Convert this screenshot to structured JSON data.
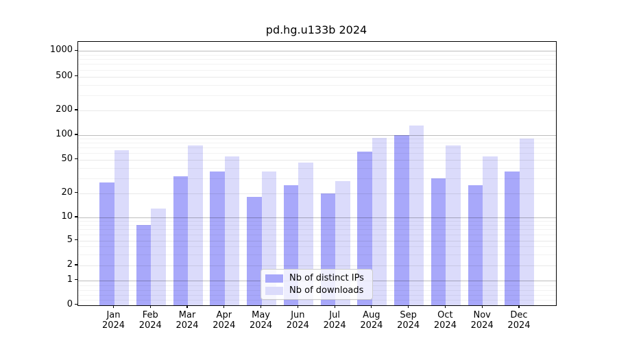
{
  "chart_data": {
    "type": "bar",
    "title": "pd.hg.u133b 2024",
    "categories": [
      "Jan 2024",
      "Feb 2024",
      "Mar 2024",
      "Apr 2024",
      "May 2024",
      "Jun 2024",
      "Jul 2024",
      "Aug 2024",
      "Sep 2024",
      "Oct 2024",
      "Nov 2024",
      "Dec 2024"
    ],
    "series": [
      {
        "name": "Nb of distinct IPs",
        "color": "#a8a8fa",
        "values": [
          27,
          8,
          32,
          36,
          18,
          25,
          20,
          63,
          100,
          30,
          25,
          36
        ]
      },
      {
        "name": "Nb of downloads",
        "color": "#dbdbfb",
        "values": [
          65,
          13,
          75,
          55,
          36,
          46,
          28,
          93,
          130,
          75,
          55,
          90
        ]
      }
    ],
    "y_ticks": [
      0,
      1,
      2,
      5,
      10,
      20,
      50,
      100,
      200,
      500,
      1000
    ],
    "y_minor_ticks": [
      0.2,
      0.4,
      0.6,
      0.8,
      3,
      4,
      6,
      7,
      8,
      9,
      30,
      40,
      60,
      70,
      80,
      90,
      300,
      400,
      600,
      700,
      800,
      900
    ],
    "xlabel": "",
    "ylabel": "",
    "y_scale": "symlog (log above 1, linear 0 to 1)",
    "ylim": [
      0,
      1300
    ],
    "grid": true,
    "gridlines_over_bars": true,
    "legend_position": "lower center",
    "background_color": "#ffffff",
    "text_color": "#000000"
  }
}
